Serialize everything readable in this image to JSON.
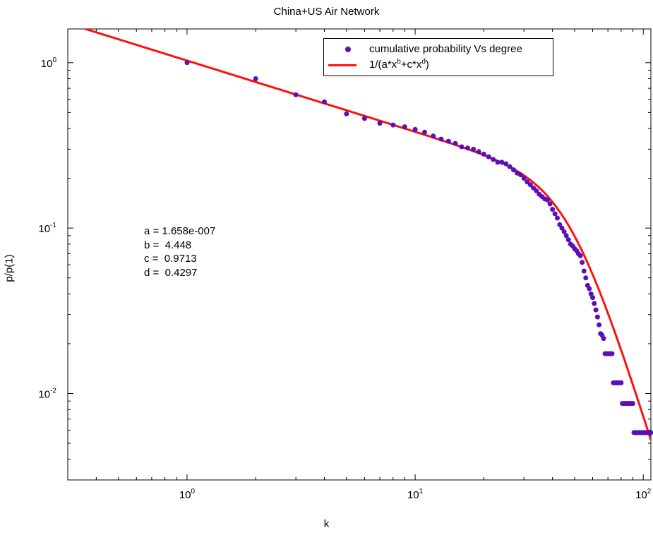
{
  "chart_data": {
    "type": "scatter",
    "title": "China+US Air Network",
    "xlabel": "k",
    "ylabel": "p/p(1)",
    "xscale": "log",
    "yscale": "log",
    "xlim": [
      0.3,
      108
    ],
    "ylim": [
      0.003,
      1.6
    ],
    "xticks": [
      "10^0",
      "10^1",
      "10^2"
    ],
    "yticks": [
      "10^0",
      "10^-1",
      "10^-2"
    ],
    "grid": false,
    "legend_position": "top-right",
    "colors": {
      "scatter": "#5b0fb5",
      "fit": "#ff1010"
    },
    "series": [
      {
        "name": "cumulative probability Vs degree",
        "kind": "scatter",
        "x": [
          1,
          2,
          3,
          4,
          5,
          6,
          7,
          8,
          9,
          10,
          11,
          12,
          13,
          14,
          15,
          16,
          17,
          18,
          19,
          20,
          21,
          22,
          23,
          24,
          25,
          26,
          27,
          28,
          29,
          30,
          31,
          32,
          33,
          34,
          35,
          36,
          37,
          38,
          39,
          40,
          41,
          42,
          43,
          44,
          45,
          46,
          47,
          48,
          49,
          50,
          51,
          52,
          53,
          54,
          55,
          56,
          57,
          58,
          59,
          60,
          61,
          62,
          63,
          64,
          65,
          66,
          67,
          68,
          69,
          70,
          71,
          72,
          73,
          74,
          75,
          76,
          77,
          78,
          79,
          80,
          81,
          82,
          83,
          84,
          85,
          86,
          87,
          88,
          89,
          90,
          91,
          92,
          93,
          94,
          95,
          96,
          97,
          98,
          99,
          100,
          101,
          102,
          103,
          104,
          105,
          106,
          107,
          108
        ],
        "y": [
          1.0,
          0.8,
          0.64,
          0.58,
          0.49,
          0.46,
          0.43,
          0.42,
          0.41,
          0.395,
          0.38,
          0.36,
          0.345,
          0.335,
          0.325,
          0.31,
          0.305,
          0.3,
          0.29,
          0.28,
          0.27,
          0.26,
          0.25,
          0.25,
          0.245,
          0.235,
          0.225,
          0.215,
          0.21,
          0.2,
          0.19,
          0.183,
          0.175,
          0.168,
          0.16,
          0.155,
          0.15,
          0.148,
          0.14,
          0.13,
          0.122,
          0.115,
          0.105,
          0.1,
          0.095,
          0.09,
          0.085,
          0.08,
          0.078,
          0.075,
          0.073,
          0.07,
          0.068,
          0.062,
          0.055,
          0.05,
          0.045,
          0.043,
          0.04,
          0.038,
          0.035,
          0.032,
          0.029,
          0.026,
          0.023,
          0.0225,
          0.0215,
          0.0174,
          0.0174,
          0.0174,
          0.0174,
          0.0174,
          0.0174,
          0.0116,
          0.0116,
          0.0116,
          0.0116,
          0.0116,
          0.0116,
          0.0116,
          0.0087,
          0.0087,
          0.0087,
          0.0087,
          0.0087,
          0.0087,
          0.0087,
          0.0087,
          0.0087,
          0.0087,
          0.0058,
          0.0058,
          0.0058,
          0.0058,
          0.0058,
          0.0058,
          0.0058,
          0.0058,
          0.0058,
          0.0058,
          0.0058,
          0.0058,
          0.0058,
          0.0058,
          0.0058,
          0.0058,
          0.0058,
          0.0058
        ]
      },
      {
        "name": "1/(a*x^b+c*x^d)",
        "kind": "line",
        "formula": {
          "a": 1.658e-07,
          "b": 4.448,
          "c": 0.9713,
          "d": 0.4297
        }
      }
    ],
    "legend": {
      "scatter_label": "cumulative probability Vs degree",
      "fit_label_base": "1/(a*x",
      "fit_sup_b": "b",
      "fit_mid": "+c*x",
      "fit_sup_d": "d",
      "fit_end": ")"
    },
    "annotations": {
      "a": "a = 1.658e-007",
      "b": "b =  4.448",
      "c": "c =  0.9713",
      "d": "d =  0.4297"
    }
  }
}
